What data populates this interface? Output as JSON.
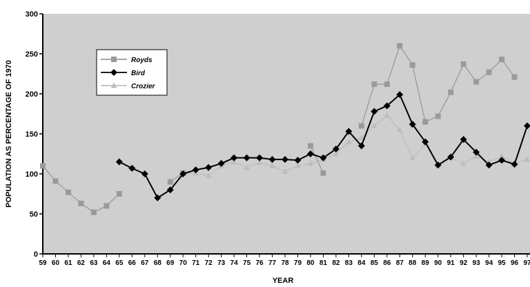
{
  "chart_data": {
    "type": "line",
    "xlabel": "YEAR",
    "ylabel": "POPULATION AS PERCENTAGE OF 1970",
    "ylim": [
      0,
      300
    ],
    "yticks": [
      0,
      50,
      100,
      150,
      200,
      250,
      300
    ],
    "categories": [
      "59",
      "60",
      "61",
      "62",
      "63",
      "64",
      "65",
      "66",
      "67",
      "68",
      "69",
      "70",
      "71",
      "72",
      "73",
      "74",
      "75",
      "76",
      "77",
      "78",
      "79",
      "80",
      "81",
      "82",
      "83",
      "84",
      "85",
      "86",
      "87",
      "88",
      "89",
      "90",
      "91",
      "92",
      "93",
      "94",
      "95",
      "96",
      "97"
    ],
    "grid": false,
    "legend_position": "top-left",
    "background_color": "#cfcfcf",
    "series": [
      {
        "name": "Royds",
        "color": "#9a9a9a",
        "marker": "square",
        "values": [
          110,
          91,
          77,
          63,
          52,
          60,
          75,
          null,
          null,
          null,
          90,
          101,
          null,
          null,
          null,
          null,
          null,
          null,
          null,
          null,
          null,
          135,
          101,
          null,
          null,
          160,
          212,
          212,
          260,
          236,
          165,
          172,
          202,
          237,
          215,
          227,
          243,
          221,
          null
        ]
      },
      {
        "name": "Bird",
        "color": "#000000",
        "marker": "diamond",
        "values": [
          null,
          null,
          null,
          null,
          null,
          null,
          115,
          107,
          100,
          70,
          80,
          100,
          105,
          108,
          113,
          120,
          120,
          120,
          118,
          118,
          117,
          125,
          120,
          131,
          153,
          135,
          178,
          185,
          199,
          162,
          140,
          111,
          121,
          143,
          127,
          111,
          117,
          112,
          160
        ]
      },
      {
        "name": "Crozier",
        "color": "#bdbdbd",
        "marker": "triangle",
        "values": [
          null,
          null,
          null,
          null,
          null,
          null,
          null,
          null,
          null,
          null,
          null,
          100,
          101,
          98,
          110,
          115,
          108,
          114,
          110,
          103,
          110,
          113,
          118,
          125,
          140,
          145,
          160,
          173,
          155,
          120,
          137,
          110,
          120,
          113,
          122,
          115,
          122,
          113,
          118
        ]
      }
    ]
  }
}
